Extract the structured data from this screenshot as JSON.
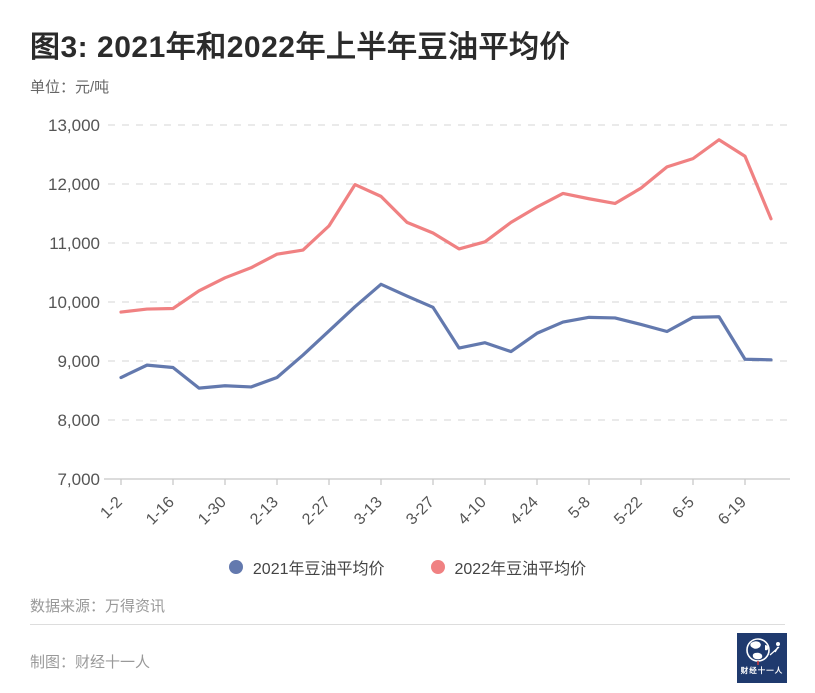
{
  "header": {
    "title": "图3: 2021年和2022年上半年豆油平均价",
    "unit": "单位：元/吨"
  },
  "chart_data": {
    "type": "line",
    "x_points": [
      "1-2",
      "1-9",
      "1-16",
      "1-23",
      "1-30",
      "2-6",
      "2-13",
      "2-20",
      "2-27",
      "3-6",
      "3-13",
      "3-20",
      "3-27",
      "4-3",
      "4-10",
      "4-17",
      "4-24",
      "5-1",
      "5-8",
      "5-15",
      "5-22",
      "5-29",
      "6-5",
      "6-12",
      "6-19",
      "6-26"
    ],
    "x_tick_labels": [
      "1-2",
      "1-16",
      "1-30",
      "2-13",
      "2-27",
      "3-13",
      "3-27",
      "4-10",
      "4-24",
      "5-8",
      "5-22",
      "6-5",
      "6-19"
    ],
    "series": [
      {
        "name": "2021年豆油平均价",
        "color": "#6379ae",
        "values": [
          8720,
          8930,
          8890,
          8540,
          8580,
          8560,
          8720,
          9100,
          9510,
          9920,
          10300,
          10100,
          9910,
          9220,
          9310,
          9160,
          9470,
          9660,
          9740,
          9730,
          9620,
          9500,
          9740,
          9750,
          9030,
          9020
        ]
      },
      {
        "name": "2022年豆油平均价",
        "color": "#f08182",
        "values": [
          9830,
          9880,
          9890,
          10190,
          10410,
          10580,
          10810,
          10880,
          11290,
          11990,
          11790,
          11350,
          11170,
          10900,
          11020,
          11350,
          11610,
          11840,
          11750,
          11670,
          11930,
          12290,
          12430,
          12750,
          12470,
          11410
        ]
      }
    ],
    "y_ticks": [
      13000,
      12000,
      11000,
      10000,
      9000,
      8000,
      7000
    ],
    "ylim": [
      7000,
      13000
    ],
    "ylabel": "元/吨",
    "grid": "horizontal-dashed",
    "legend_position": "bottom-center"
  },
  "footer": {
    "source": "数据来源：万得资讯",
    "credit": "制图：财经十一人",
    "logo_text": "财经十一人"
  },
  "colors": {
    "series_2021": "#6379ae",
    "series_2022": "#f08182",
    "grid": "#dddddd",
    "axis": "#c8c8c8",
    "tick_text": "#555555",
    "logo_bg": "#1f3a6e"
  }
}
